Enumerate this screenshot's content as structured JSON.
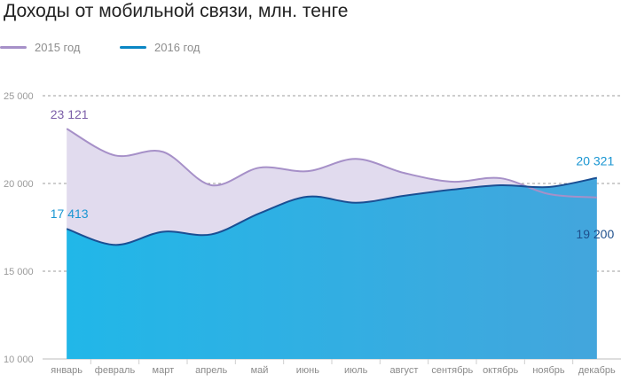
{
  "chart_data": {
    "type": "area",
    "title": "Доходы от мобильной связи, млн. тенге",
    "categories": [
      "январь",
      "февраль",
      "март",
      "апрель",
      "май",
      "июнь",
      "июль",
      "август",
      "сентябрь",
      "октябрь",
      "ноябрь",
      "декабрь"
    ],
    "series": [
      {
        "name": "2015 год",
        "color": "#a690c8",
        "fill": "#e1dbee",
        "values": [
          23121,
          21600,
          21800,
          19900,
          20900,
          20700,
          21400,
          20600,
          20100,
          20300,
          19400,
          19200
        ]
      },
      {
        "name": "2016 год",
        "color": "#0a86c4",
        "fill": "#23a9e2",
        "values": [
          17413,
          16500,
          17250,
          17100,
          18300,
          19250,
          18900,
          19300,
          19650,
          19900,
          19800,
          20321
        ]
      }
    ],
    "data_labels": [
      {
        "series": 0,
        "index": 0,
        "text": "23 121",
        "color": "#7b5ea8"
      },
      {
        "series": 1,
        "index": 0,
        "text": "17 413",
        "color": "#1a96d2"
      },
      {
        "series": 1,
        "index": 11,
        "text": "20 321",
        "color": "#1a96d2"
      },
      {
        "series": 0,
        "index": 11,
        "text": "19 200",
        "color": "#1e4f8c"
      }
    ],
    "yaxis": {
      "ticks": [
        10000,
        15000,
        20000,
        25000
      ],
      "tick_labels": [
        "10 000",
        "15 000",
        "20 000",
        "25 000"
      ],
      "ylim": [
        10000,
        25000
      ]
    },
    "grid": true,
    "legend_position": "top-left"
  }
}
